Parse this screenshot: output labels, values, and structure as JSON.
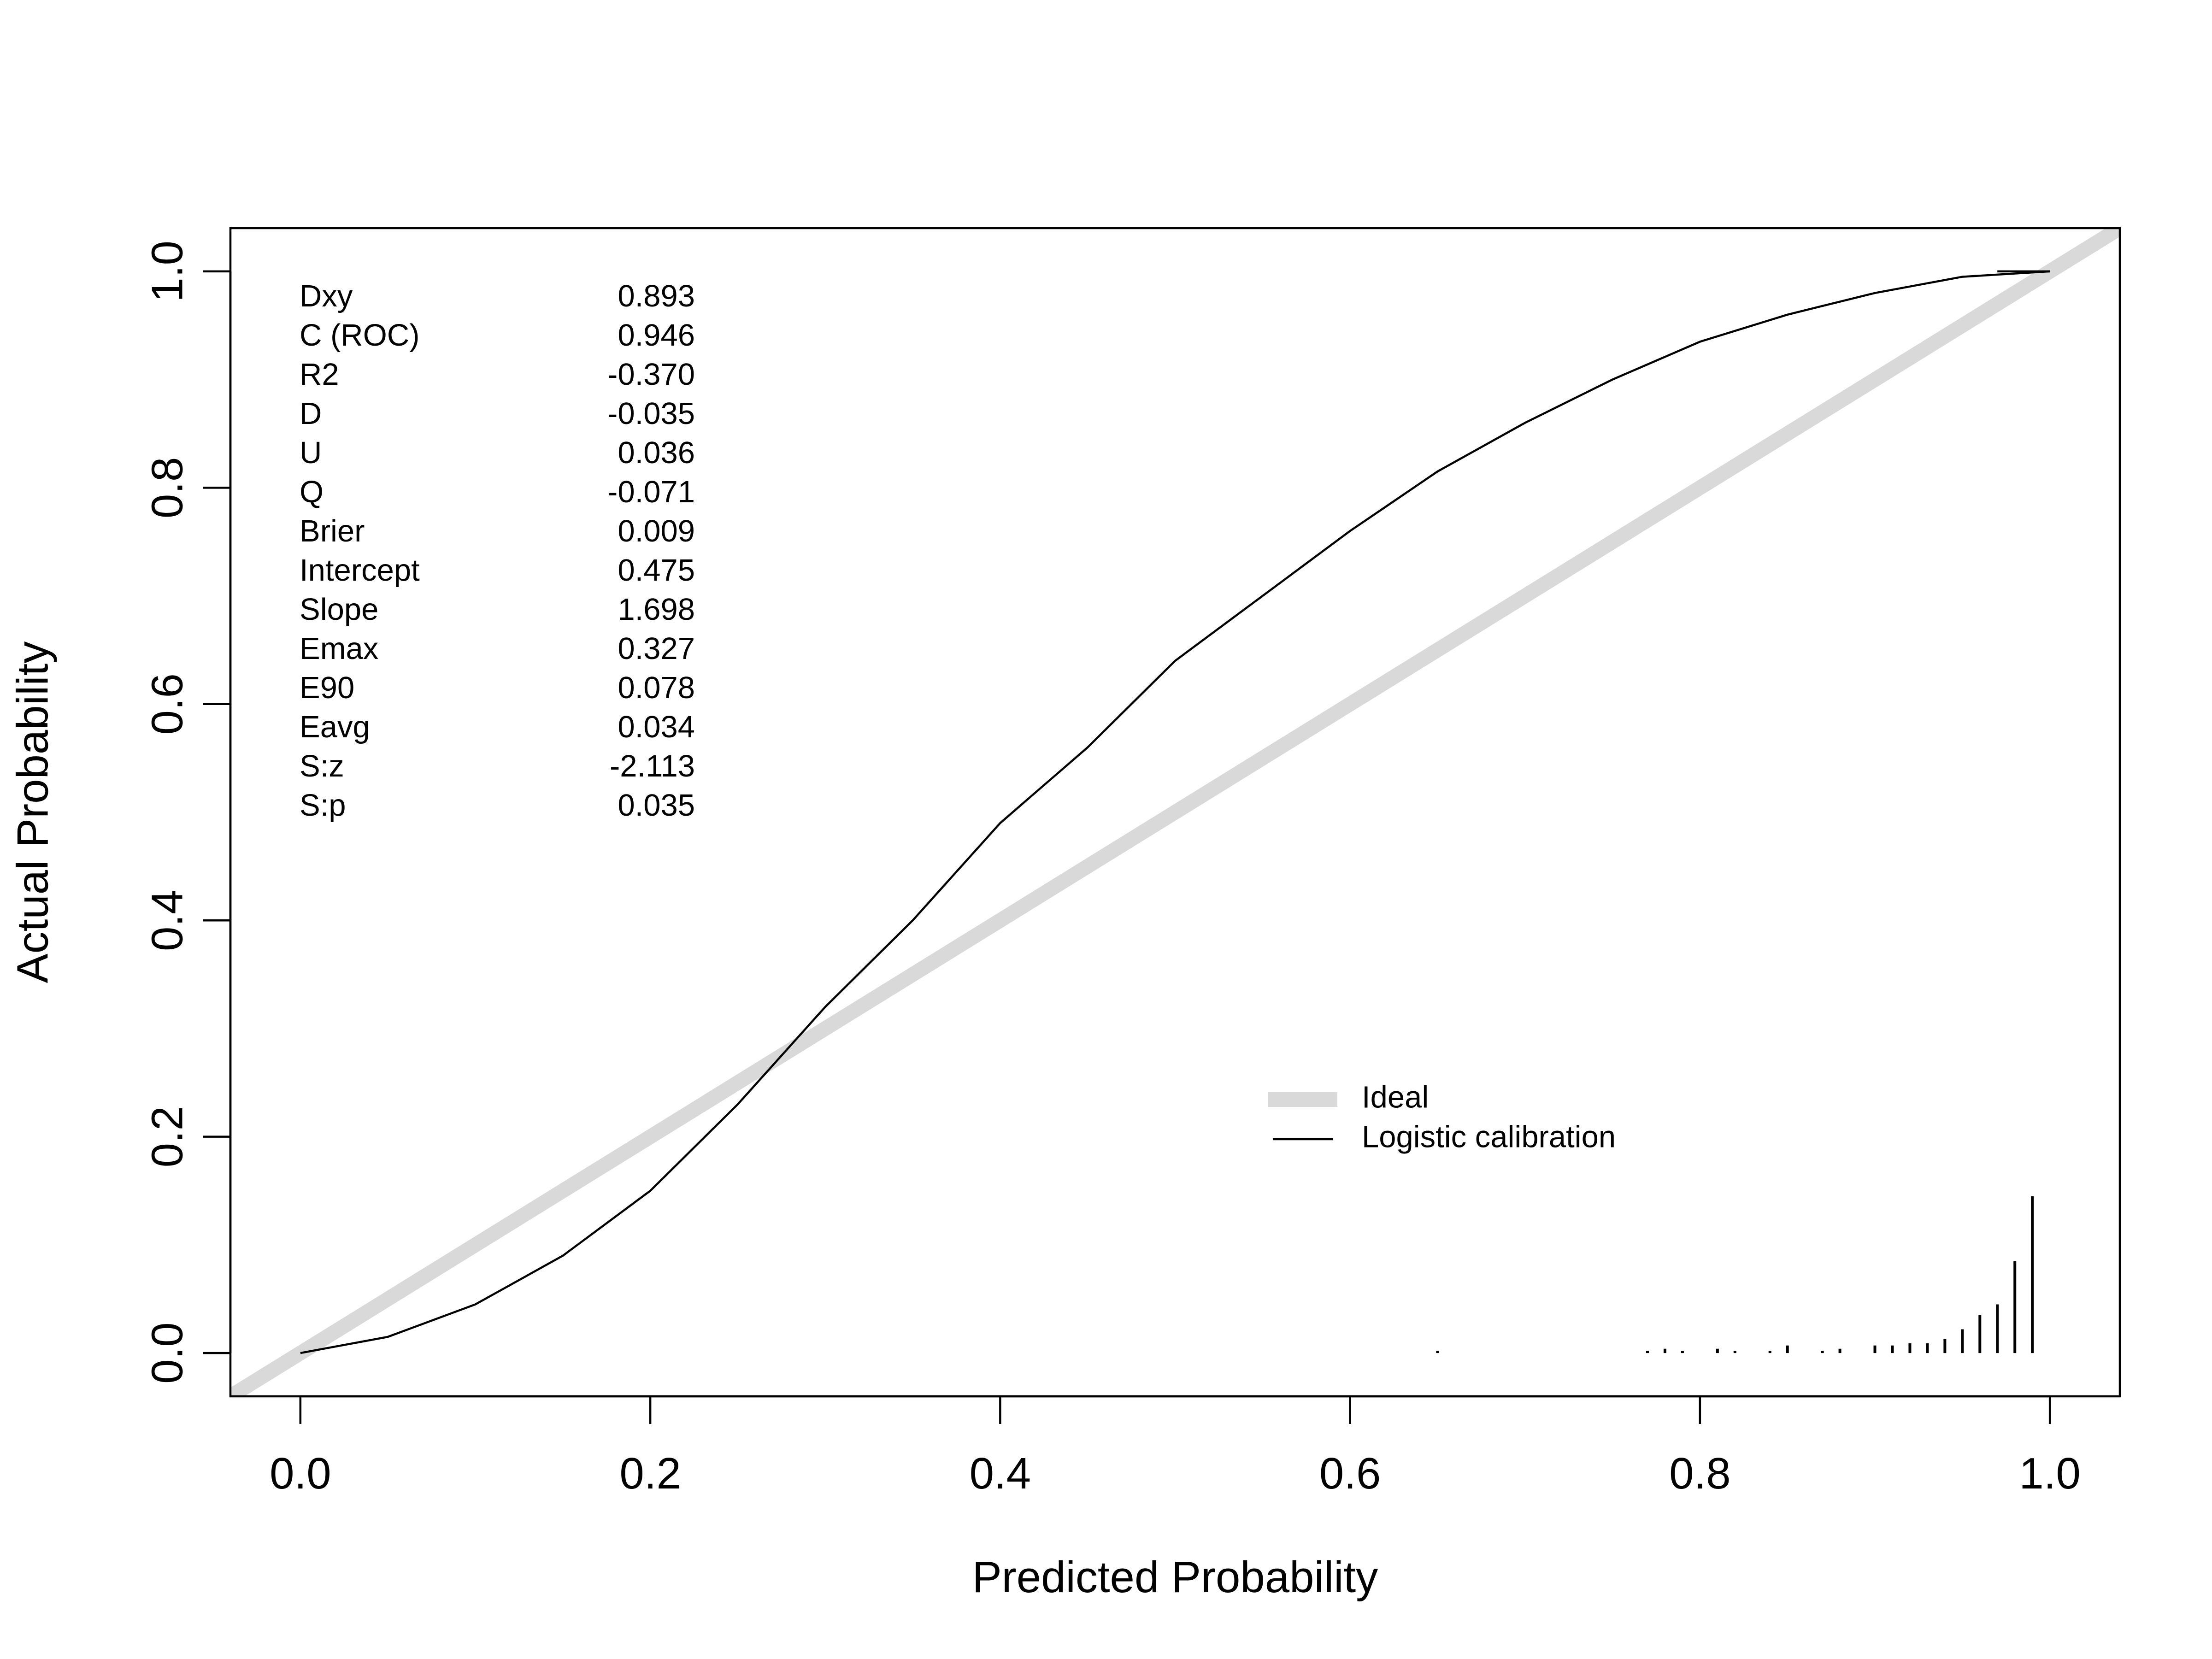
{
  "chart_data": {
    "type": "line",
    "xlabel": "Predicted Probability",
    "ylabel": "Actual Probability",
    "xlim": [
      -0.04,
      1.04
    ],
    "ylim": [
      -0.04,
      1.04
    ],
    "x_ticks": [
      "0.0",
      "0.2",
      "0.4",
      "0.6",
      "0.8",
      "1.0"
    ],
    "y_ticks": [
      "0.0",
      "0.2",
      "0.4",
      "0.6",
      "0.8",
      "1.0"
    ],
    "grid": false,
    "legend_position": "center-right",
    "series": [
      {
        "name": "Ideal",
        "color": "#d9d9d9",
        "x": [
          -0.04,
          1.04
        ],
        "y": [
          -0.04,
          1.04
        ]
      },
      {
        "name": "Logistic calibration",
        "color": "#000000",
        "x": [
          0.0,
          0.05,
          0.1,
          0.15,
          0.2,
          0.25,
          0.3,
          0.35,
          0.4,
          0.45,
          0.5,
          0.55,
          0.6,
          0.65,
          0.7,
          0.75,
          0.8,
          0.85,
          0.9,
          0.95,
          1.0
        ],
        "y": [
          0.0,
          0.015,
          0.045,
          0.09,
          0.15,
          0.23,
          0.32,
          0.4,
          0.49,
          0.56,
          0.64,
          0.7,
          0.76,
          0.815,
          0.86,
          0.9,
          0.935,
          0.96,
          0.98,
          0.995,
          1.0
        ]
      }
    ],
    "stats": [
      {
        "label": "Dxy",
        "value": "0.893"
      },
      {
        "label": "C (ROC)",
        "value": "0.946"
      },
      {
        "label": "R2",
        "value": "-0.370"
      },
      {
        "label": "D",
        "value": "-0.035"
      },
      {
        "label": "U",
        "value": "0.036"
      },
      {
        "label": "Q",
        "value": "-0.071"
      },
      {
        "label": "Brier",
        "value": "0.009"
      },
      {
        "label": "Intercept",
        "value": "0.475"
      },
      {
        "label": "Slope",
        "value": "1.698"
      },
      {
        "label": "Emax",
        "value": "0.327"
      },
      {
        "label": "E90",
        "value": "0.078"
      },
      {
        "label": "Eavg",
        "value": "0.034"
      },
      {
        "label": "S:z",
        "value": "-2.113"
      },
      {
        "label": "S:p",
        "value": "0.035"
      }
    ],
    "rug": {
      "x": [
        0.65,
        0.77,
        0.78,
        0.79,
        0.81,
        0.82,
        0.84,
        0.85,
        0.87,
        0.88,
        0.9,
        0.91,
        0.92,
        0.93,
        0.94,
        0.95,
        0.96,
        0.97,
        0.98,
        0.99
      ],
      "height": [
        0.002,
        0.002,
        0.004,
        0.002,
        0.004,
        0.002,
        0.002,
        0.007,
        0.002,
        0.004,
        0.007,
        0.007,
        0.009,
        0.009,
        0.013,
        0.022,
        0.035,
        0.045,
        0.085,
        0.145
      ]
    }
  }
}
